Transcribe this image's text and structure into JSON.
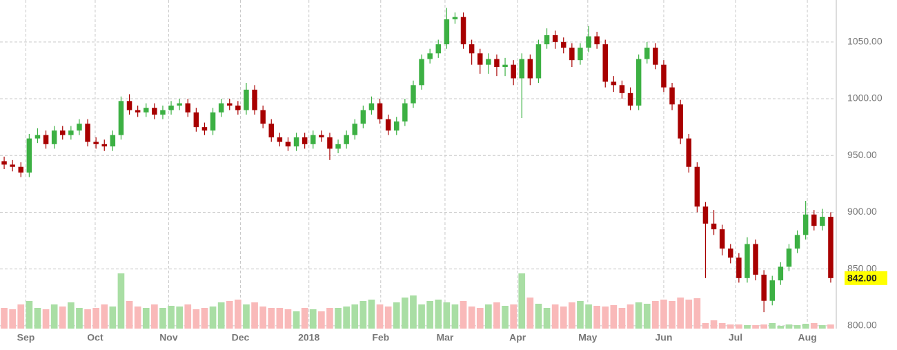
{
  "chart_data": {
    "type": "candlestick",
    "x": [
      0,
      1,
      2,
      3,
      4,
      5,
      6,
      7,
      8,
      9,
      10,
      11,
      12,
      13,
      14,
      15,
      16,
      17,
      18,
      19,
      20,
      21,
      22,
      23,
      24,
      25,
      26,
      27,
      28,
      29,
      30,
      31,
      32,
      33,
      34,
      35,
      36,
      37,
      38,
      39,
      40,
      41,
      42,
      43,
      44,
      45,
      46,
      47,
      48,
      49,
      50,
      51,
      52,
      53,
      54,
      55,
      56,
      57,
      58,
      59,
      60,
      61,
      62,
      63,
      64,
      65,
      66,
      67,
      68,
      69,
      70,
      71,
      72,
      73,
      74,
      75,
      76,
      77,
      78,
      79,
      80,
      81,
      82,
      83,
      84,
      85,
      86,
      87,
      88,
      89,
      90,
      91,
      92,
      93,
      94,
      95,
      96,
      97,
      98,
      99
    ],
    "open": [
      945,
      942,
      940,
      935,
      965,
      968,
      960,
      972,
      968,
      972,
      978,
      962,
      960,
      958,
      968,
      998,
      990,
      988,
      992,
      986,
      990,
      994,
      996,
      988,
      975,
      972,
      988,
      996,
      994,
      990,
      1008,
      990,
      978,
      966,
      962,
      958,
      966,
      960,
      968,
      966,
      956,
      960,
      968,
      978,
      990,
      996,
      982,
      972,
      980,
      996,
      1012,
      1035,
      1040,
      1048,
      1070,
      1072,
      1048,
      1040,
      1030,
      1035,
      1028,
      1030,
      1018,
      1035,
      1018,
      1048,
      1056,
      1050,
      1045,
      1034,
      1045,
      1055,
      1048,
      1015,
      1012,
      1005,
      994,
      1035,
      1045,
      1030,
      1010,
      995,
      965,
      940,
      905,
      890,
      885,
      868,
      860,
      842,
      872,
      845,
      822,
      840,
      852,
      868,
      880,
      898,
      888,
      896
    ],
    "high": [
      949,
      946,
      944,
      969,
      974,
      972,
      976,
      976,
      976,
      982,
      982,
      966,
      964,
      972,
      1002,
      1004,
      994,
      996,
      996,
      994,
      998,
      1000,
      1000,
      992,
      979,
      992,
      1000,
      1000,
      998,
      1014,
      1012,
      994,
      982,
      970,
      966,
      970,
      970,
      972,
      972,
      970,
      964,
      972,
      982,
      994,
      1002,
      1000,
      986,
      984,
      1000,
      1016,
      1039,
      1044,
      1052,
      1080,
      1076,
      1076,
      1052,
      1044,
      1040,
      1039,
      1036,
      1034,
      1040,
      1039,
      1052,
      1062,
      1060,
      1054,
      1049,
      1049,
      1064,
      1059,
      1052,
      1020,
      1016,
      1010,
      1039,
      1050,
      1049,
      1034,
      1014,
      999,
      969,
      944,
      909,
      902,
      889,
      872,
      864,
      878,
      876,
      849,
      844,
      856,
      872,
      884,
      910,
      902,
      903,
      900
    ],
    "low": [
      938,
      936,
      931,
      931,
      961,
      956,
      956,
      964,
      964,
      968,
      958,
      956,
      954,
      954,
      964,
      986,
      984,
      984,
      982,
      982,
      986,
      990,
      984,
      971,
      968,
      968,
      984,
      990,
      986,
      986,
      986,
      974,
      962,
      958,
      954,
      954,
      956,
      956,
      962,
      946,
      952,
      956,
      964,
      974,
      986,
      978,
      968,
      968,
      976,
      992,
      1008,
      1031,
      1036,
      1044,
      1066,
      1044,
      1030,
      1022,
      1022,
      1020,
      1020,
      1012,
      983,
      1012,
      1014,
      1044,
      1044,
      1040,
      1028,
      1030,
      1041,
      1044,
      1010,
      1006,
      1000,
      990,
      990,
      1031,
      1026,
      1006,
      990,
      960,
      935,
      900,
      842,
      880,
      862,
      855,
      838,
      838,
      840,
      812,
      818,
      836,
      848,
      864,
      876,
      884,
      884,
      838
    ],
    "close": [
      942,
      940,
      935,
      965,
      968,
      960,
      972,
      968,
      972,
      978,
      962,
      960,
      958,
      968,
      998,
      990,
      988,
      992,
      986,
      990,
      994,
      996,
      988,
      975,
      972,
      988,
      996,
      994,
      990,
      1008,
      990,
      978,
      966,
      962,
      958,
      966,
      960,
      968,
      966,
      956,
      960,
      968,
      978,
      990,
      996,
      982,
      972,
      980,
      996,
      1012,
      1035,
      1040,
      1048,
      1070,
      1072,
      1048,
      1040,
      1030,
      1035,
      1028,
      1030,
      1018,
      1035,
      1018,
      1048,
      1056,
      1050,
      1045,
      1034,
      1045,
      1055,
      1048,
      1015,
      1012,
      1005,
      994,
      1035,
      1045,
      1030,
      1010,
      995,
      965,
      940,
      905,
      890,
      885,
      868,
      860,
      842,
      872,
      845,
      822,
      840,
      852,
      868,
      880,
      898,
      888,
      896,
      842
    ],
    "volume": [
      30,
      28,
      35,
      40,
      30,
      28,
      35,
      32,
      38,
      30,
      28,
      30,
      35,
      32,
      80,
      40,
      32,
      30,
      35,
      30,
      33,
      32,
      35,
      28,
      30,
      32,
      38,
      40,
      42,
      35,
      38,
      32,
      30,
      30,
      28,
      25,
      30,
      28,
      25,
      30,
      30,
      32,
      35,
      40,
      42,
      35,
      32,
      38,
      45,
      48,
      35,
      40,
      42,
      38,
      35,
      40,
      32,
      30,
      35,
      38,
      33,
      35,
      80,
      45,
      36,
      30,
      35,
      32,
      38,
      40,
      35,
      33,
      32,
      34,
      30,
      35,
      38,
      36,
      40,
      42,
      40,
      45,
      42,
      44,
      8,
      12,
      8,
      6,
      6,
      5,
      5,
      6,
      8,
      4,
      6,
      5,
      7,
      8,
      5,
      6
    ],
    "colors": {
      "up": "#3cb043",
      "down": "#a80000",
      "volume_up": "#a9dea4",
      "volume_down": "#f9b9b9"
    },
    "xlim": [
      -0.5,
      99.5
    ],
    "xticks": [
      {
        "value": 2.6,
        "label": "Sep"
      },
      {
        "value": 10.9,
        "label": "Oct"
      },
      {
        "value": 19.7,
        "label": "Nov"
      },
      {
        "value": 28.3,
        "label": "Dec"
      },
      {
        "value": 36.5,
        "label": "2018"
      },
      {
        "value": 45.1,
        "label": "Feb"
      },
      {
        "value": 52.8,
        "label": "Mar"
      },
      {
        "value": 61.5,
        "label": "Apr"
      },
      {
        "value": 69.9,
        "label": "May"
      },
      {
        "value": 79.0,
        "label": "Jun"
      },
      {
        "value": 87.6,
        "label": "Jul"
      },
      {
        "value": 96.2,
        "label": "Aug"
      }
    ],
    "ylim": [
      797.5,
      1087
    ],
    "yticks": [
      {
        "value": 800,
        "label": "800.00"
      },
      {
        "value": 850,
        "label": "850.00"
      },
      {
        "value": 900,
        "label": "900.00"
      },
      {
        "value": 950,
        "label": "950.00"
      },
      {
        "value": 1000,
        "label": "1000.00"
      },
      {
        "value": 1050,
        "label": "1050.00"
      }
    ],
    "y2lim": [
      0,
      476
    ],
    "grid": true,
    "last_price": {
      "value": 842,
      "label": "842.00",
      "color": "#ffff00"
    }
  }
}
